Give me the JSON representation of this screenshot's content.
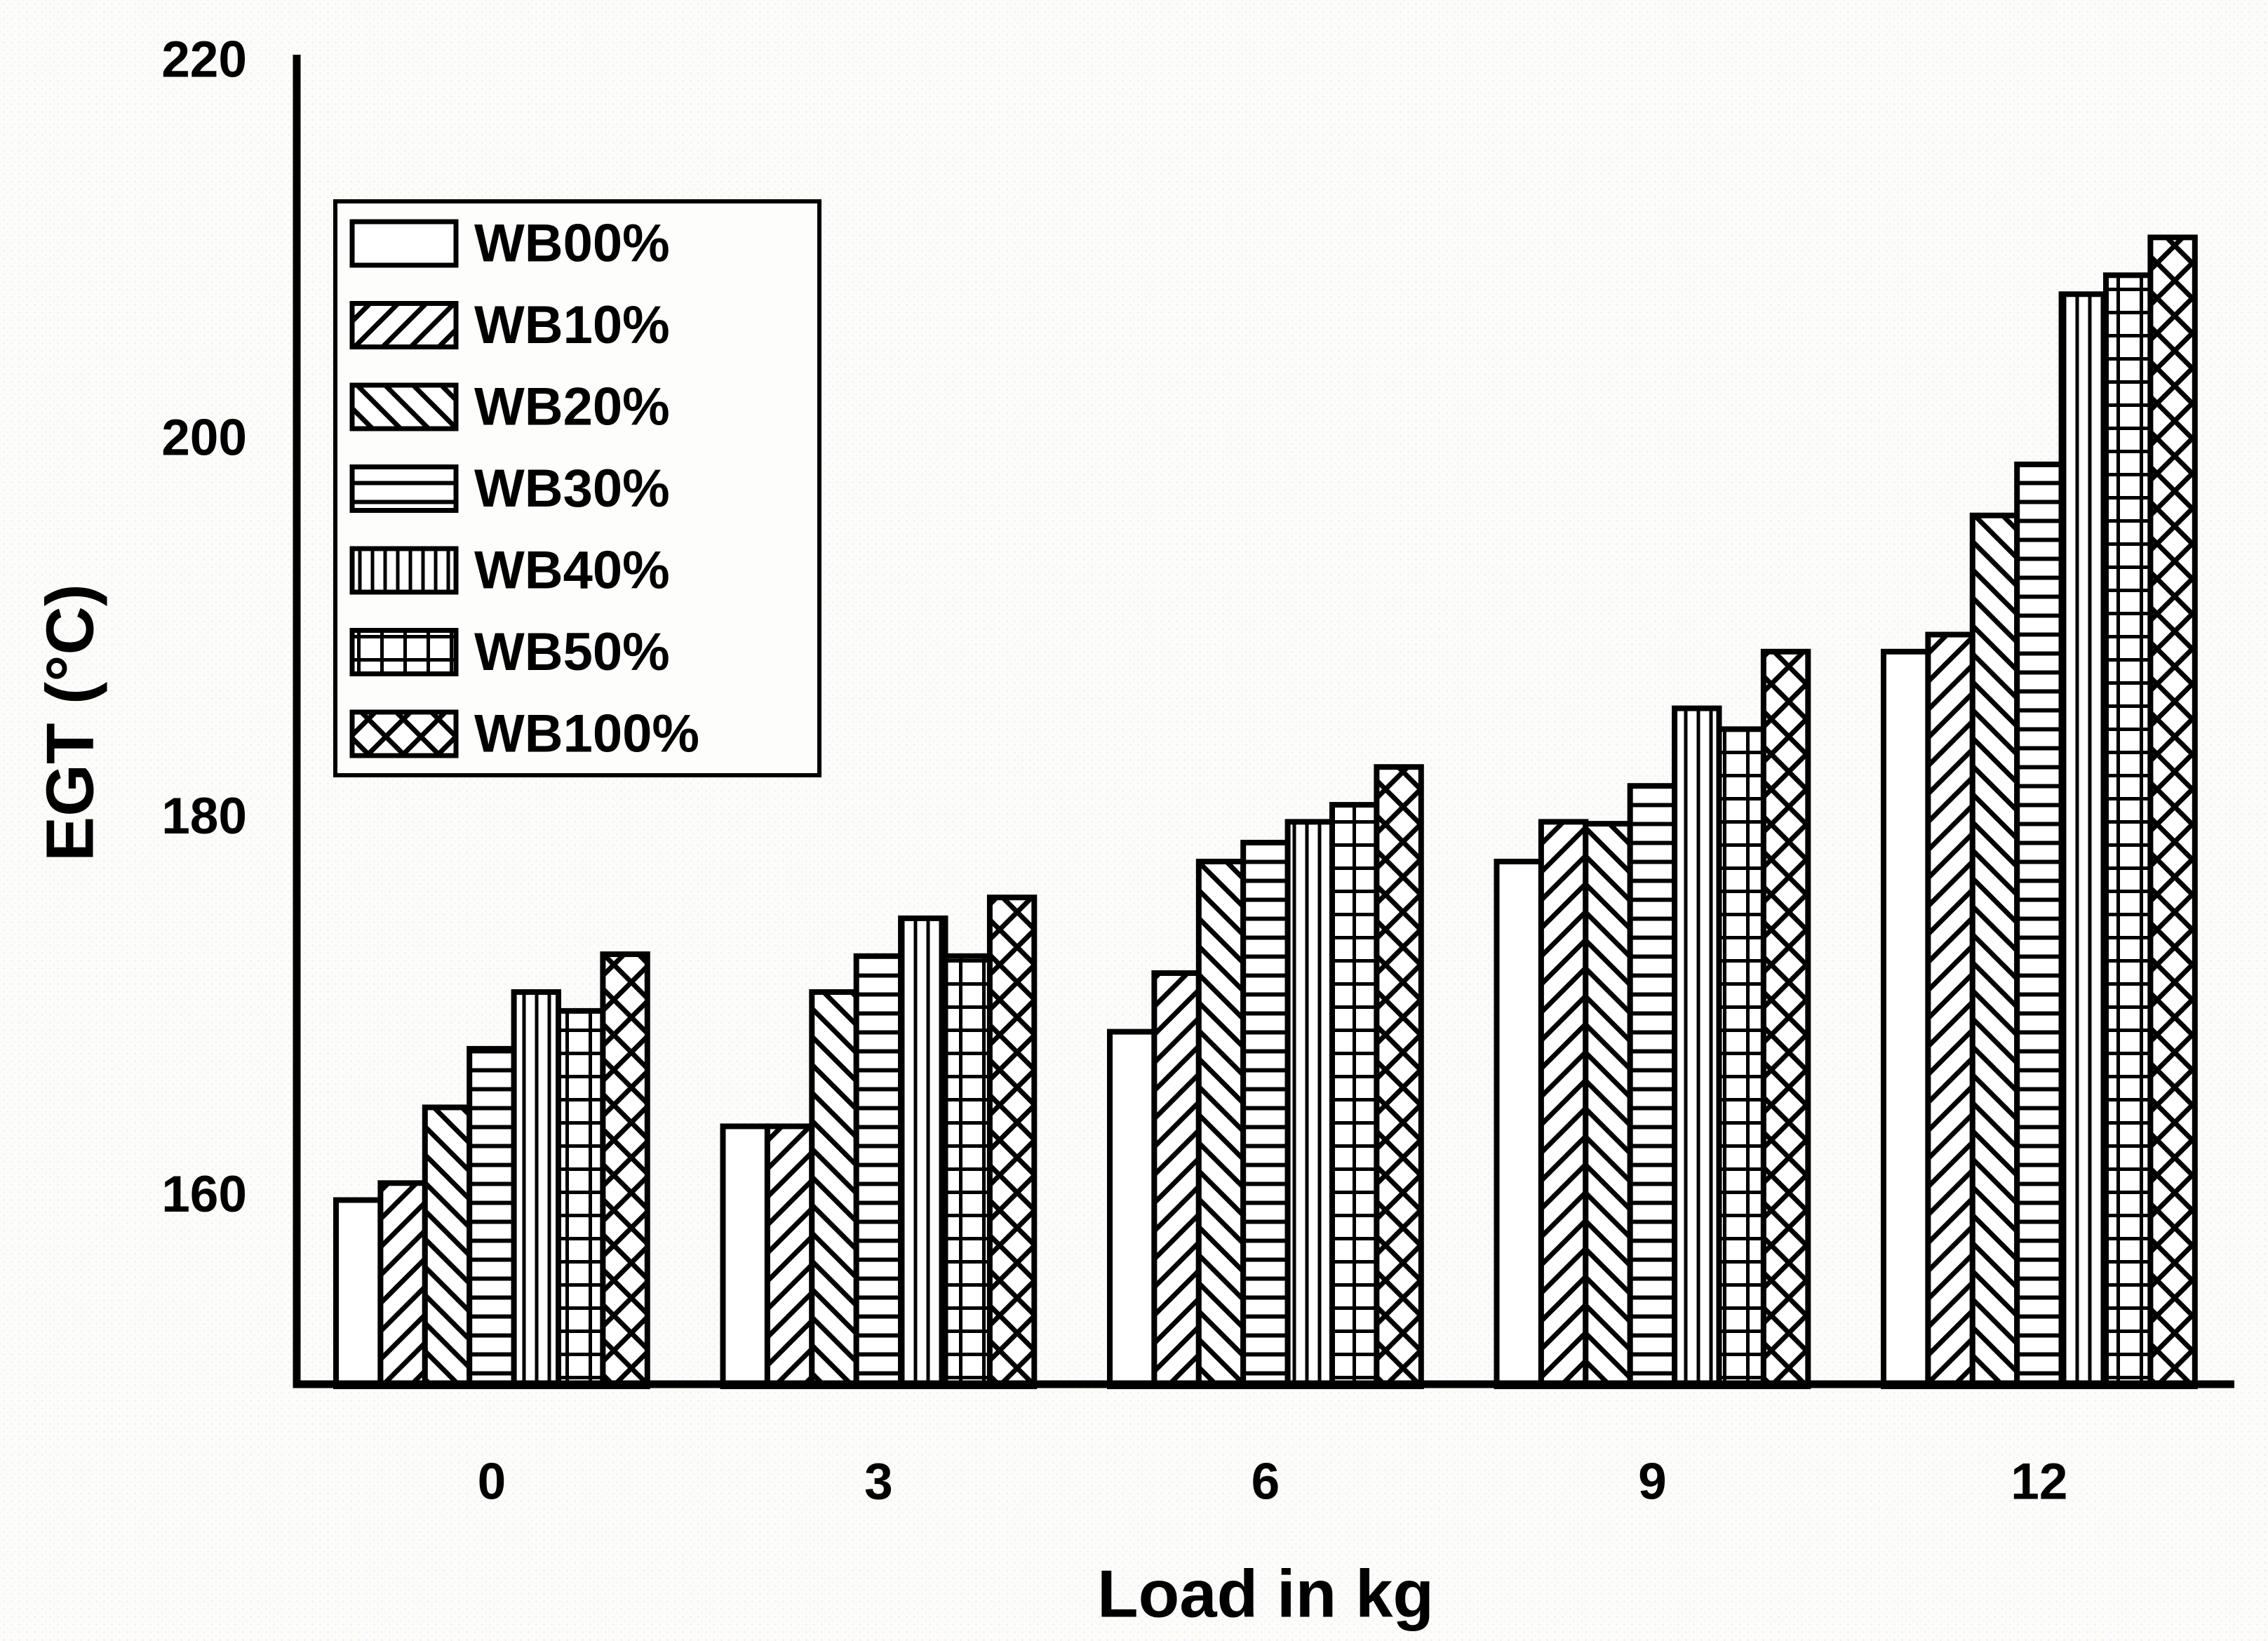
{
  "figure": {
    "ink": "#000000",
    "background": "#fcfcfa",
    "bar_fill": "#ffffff"
  },
  "chart_data": {
    "type": "bar",
    "title": "",
    "xlabel": "Load in kg",
    "ylabel": "EGT (°C)",
    "categories": [
      "0",
      "3",
      "6",
      "9",
      "12"
    ],
    "ylim": [
      150,
      220
    ],
    "yticks": [
      160,
      180,
      200,
      220
    ],
    "grid": false,
    "legend_position": "top-left",
    "series": [
      {
        "name": "WB00%",
        "hatch": "none",
        "values": [
          159.7,
          163.6,
          168.6,
          177.6,
          188.7
        ]
      },
      {
        "name": "WB10%",
        "hatch": "diagonal-up",
        "values": [
          160.6,
          163.6,
          171.7,
          179.7,
          189.6
        ]
      },
      {
        "name": "WB20%",
        "hatch": "diagonal-down",
        "values": [
          164.6,
          170.7,
          177.6,
          179.6,
          195.9
        ]
      },
      {
        "name": "WB30%",
        "hatch": "horizontal",
        "values": [
          167.7,
          172.6,
          178.6,
          181.6,
          198.6
        ]
      },
      {
        "name": "WB40%",
        "hatch": "vertical",
        "values": [
          170.7,
          174.6,
          179.7,
          185.7,
          207.6
        ]
      },
      {
        "name": "WB50%",
        "hatch": "grid",
        "values": [
          169.7,
          172.6,
          180.6,
          184.6,
          208.6
        ]
      },
      {
        "name": "WB100%",
        "hatch": "crosshatch",
        "values": [
          172.7,
          175.7,
          182.6,
          188.7,
          210.6
        ]
      }
    ]
  }
}
